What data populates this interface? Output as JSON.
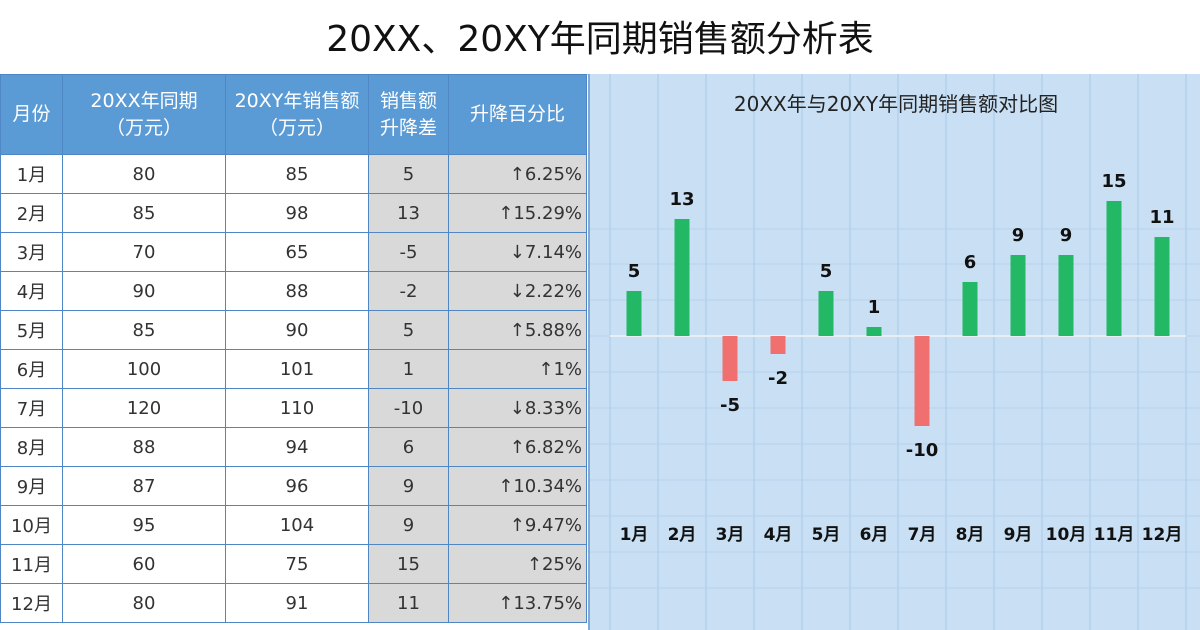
{
  "title": "20XX、20XY年同期销售额分析表",
  "table": {
    "headers": {
      "month": "月份",
      "prev_line1": "20XX年同期",
      "prev_line2": "（万元）",
      "curr_line1": "20XY年销售额",
      "curr_line2": "（万元）",
      "diff_line1": "销售额",
      "diff_line2": "升降差",
      "pct": "升降百分比"
    },
    "rows": [
      {
        "month": "1月",
        "prev": "80",
        "curr": "85",
        "diff": "5",
        "arrow": "↑",
        "pct": "6.25%",
        "dir": "up"
      },
      {
        "month": "2月",
        "prev": "85",
        "curr": "98",
        "diff": "13",
        "arrow": "↑",
        "pct": "15.29%",
        "dir": "up"
      },
      {
        "month": "3月",
        "prev": "70",
        "curr": "65",
        "diff": "-5",
        "arrow": "↓",
        "pct": "7.14%",
        "dir": "down"
      },
      {
        "month": "4月",
        "prev": "90",
        "curr": "88",
        "diff": "-2",
        "arrow": "↓",
        "pct": "2.22%",
        "dir": "down"
      },
      {
        "month": "5月",
        "prev": "85",
        "curr": "90",
        "diff": "5",
        "arrow": "↑",
        "pct": "5.88%",
        "dir": "up"
      },
      {
        "month": "6月",
        "prev": "100",
        "curr": "101",
        "diff": "1",
        "arrow": "↑",
        "pct": "1%",
        "dir": "up"
      },
      {
        "month": "7月",
        "prev": "120",
        "curr": "110",
        "diff": "-10",
        "arrow": "↓",
        "pct": "8.33%",
        "dir": "down"
      },
      {
        "month": "8月",
        "prev": "88",
        "curr": "94",
        "diff": "6",
        "arrow": "↑",
        "pct": "6.82%",
        "dir": "up"
      },
      {
        "month": "9月",
        "prev": "87",
        "curr": "96",
        "diff": "9",
        "arrow": "↑",
        "pct": "10.34%",
        "dir": "up"
      },
      {
        "month": "10月",
        "prev": "95",
        "curr": "104",
        "diff": "9",
        "arrow": "↑",
        "pct": "9.47%",
        "dir": "up"
      },
      {
        "month": "11月",
        "prev": "60",
        "curr": "75",
        "diff": "15",
        "arrow": "↑",
        "pct": "25%",
        "dir": "up"
      },
      {
        "month": "12月",
        "prev": "80",
        "curr": "91",
        "diff": "11",
        "arrow": "↑",
        "pct": "13.75%",
        "dir": "up"
      }
    ]
  },
  "colors": {
    "header_bg": "#5b9bd5",
    "chart_bg": "#c9dff3",
    "positive": "#22b866",
    "negative": "#f07070",
    "up_text": "#1aa64a",
    "down_text": "#e02020"
  },
  "chart_data": {
    "type": "bar",
    "title": "20XX年与20XY年同期销售额对比图",
    "categories": [
      "1月",
      "2月",
      "3月",
      "4月",
      "5月",
      "6月",
      "7月",
      "8月",
      "9月",
      "10月",
      "11月",
      "12月"
    ],
    "values": [
      5,
      13,
      -5,
      -2,
      5,
      1,
      -10,
      6,
      9,
      9,
      15,
      11
    ],
    "ylim": [
      -12,
      17
    ],
    "grid": "vertical",
    "legend": "none",
    "xlabel": "",
    "ylabel": ""
  }
}
